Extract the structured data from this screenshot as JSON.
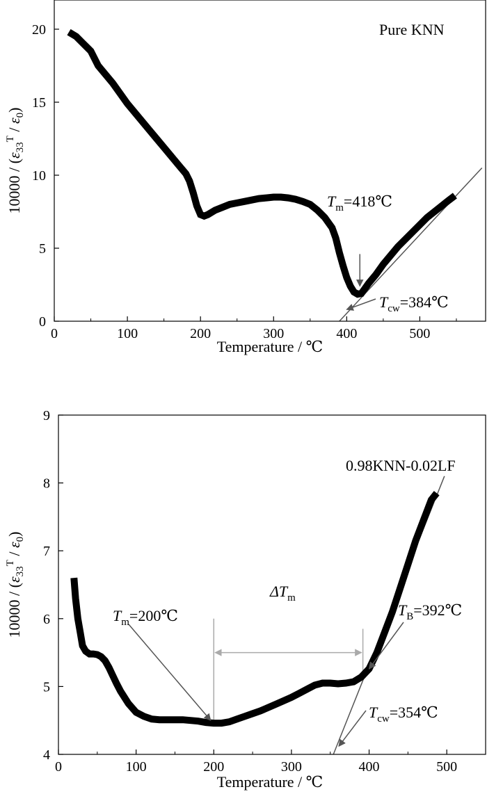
{
  "chart_data": [
    {
      "type": "line",
      "title": "Pure KNN",
      "xlabel": "Temperature / ℃",
      "ylabel_parts": [
        "10000 / (",
        "ε",
        "33",
        "T",
        " / ",
        "ε",
        "0",
        ")"
      ],
      "xlim": [
        0,
        590
      ],
      "ylim": [
        0,
        22
      ],
      "xticks": [
        0,
        100,
        200,
        300,
        400,
        500
      ],
      "yticks": [
        0,
        5,
        10,
        15,
        20
      ],
      "grid": false,
      "series": [
        {
          "x": [
            20,
            30,
            40,
            50,
            60,
            70,
            80,
            90,
            100,
            110,
            120,
            130,
            140,
            150,
            160,
            170,
            180,
            185,
            190,
            195,
            200,
            205,
            210,
            220,
            230,
            240,
            250,
            260,
            270,
            280,
            290,
            300,
            310,
            320,
            330,
            340,
            350,
            360,
            370,
            380,
            385,
            390,
            395,
            400,
            405,
            410,
            415,
            420,
            430,
            440,
            450,
            460,
            470,
            480,
            490,
            500,
            510,
            520,
            530,
            540,
            548
          ],
          "y": [
            19.8,
            19.5,
            19.0,
            18.5,
            17.5,
            16.9,
            16.3,
            15.6,
            14.9,
            14.3,
            13.7,
            13.1,
            12.5,
            11.9,
            11.3,
            10.7,
            10.1,
            9.6,
            8.8,
            7.9,
            7.3,
            7.2,
            7.3,
            7.6,
            7.8,
            8.0,
            8.1,
            8.2,
            8.3,
            8.4,
            8.45,
            8.5,
            8.5,
            8.45,
            8.35,
            8.2,
            8.0,
            7.6,
            7.1,
            6.4,
            5.7,
            4.7,
            3.8,
            3.0,
            2.4,
            2.0,
            1.85,
            1.9,
            2.6,
            3.2,
            3.9,
            4.5,
            5.1,
            5.6,
            6.1,
            6.6,
            7.1,
            7.5,
            7.9,
            8.3,
            8.6
          ]
        }
      ],
      "fit_line": {
        "x": [
          390,
          585
        ],
        "y": [
          0,
          10.5
        ]
      },
      "annotations": {
        "tm": {
          "sym": "T",
          "sub": "m",
          "value": "=418℃"
        },
        "tcw": {
          "sym": "T",
          "sub": "cw",
          "value": "=384℃"
        }
      },
      "colors": {
        "curve": "#000000",
        "fit_line": "#555555",
        "arrow": "#555555"
      }
    },
    {
      "type": "line",
      "title": "0.98KNN-0.02LF",
      "xlabel": "Temperature / ℃",
      "ylabel_parts": [
        "10000 / (",
        "ε",
        "33",
        "T",
        " / ",
        "ε",
        "0",
        ")"
      ],
      "xlim": [
        0,
        550
      ],
      "ylim": [
        4,
        9
      ],
      "xticks": [
        0,
        100,
        200,
        300,
        400,
        500
      ],
      "yticks": [
        4,
        5,
        6,
        7,
        8,
        9
      ],
      "grid": false,
      "series": [
        {
          "x": [
            20,
            22,
            25,
            28,
            31,
            35,
            40,
            45,
            50,
            55,
            60,
            65,
            70,
            75,
            80,
            90,
            100,
            110,
            120,
            130,
            140,
            150,
            160,
            170,
            180,
            190,
            200,
            210,
            220,
            230,
            240,
            250,
            260,
            270,
            280,
            290,
            300,
            310,
            320,
            330,
            340,
            350,
            360,
            370,
            380,
            390,
            400,
            410,
            420,
            430,
            440,
            450,
            460,
            470,
            480,
            487
          ],
          "y": [
            6.6,
            6.3,
            6.0,
            5.8,
            5.6,
            5.52,
            5.48,
            5.48,
            5.47,
            5.44,
            5.38,
            5.28,
            5.16,
            5.04,
            4.93,
            4.75,
            4.62,
            4.56,
            4.52,
            4.51,
            4.51,
            4.51,
            4.51,
            4.5,
            4.49,
            4.47,
            4.46,
            4.46,
            4.48,
            4.52,
            4.56,
            4.6,
            4.64,
            4.69,
            4.74,
            4.79,
            4.84,
            4.9,
            4.96,
            5.02,
            5.05,
            5.05,
            5.04,
            5.05,
            5.07,
            5.14,
            5.26,
            5.5,
            5.8,
            6.1,
            6.45,
            6.8,
            7.15,
            7.45,
            7.75,
            7.85
          ]
        }
      ],
      "fit_line": {
        "x": [
          354,
          497
        ],
        "y": [
          4,
          8.1
        ]
      },
      "markers": {
        "tm_x": 200,
        "tb_x": 392
      },
      "annotations": {
        "dtm": {
          "sym": "ΔT",
          "sub": "m"
        },
        "tm": {
          "sym": "T",
          "sub": "m",
          "value": "=200℃"
        },
        "tb": {
          "sym": "T",
          "sub": "B",
          "value": "=392℃"
        },
        "tcw": {
          "sym": "T",
          "sub": "cw",
          "value": "=354℃"
        }
      },
      "colors": {
        "curve": "#000000",
        "fit_line": "#555555",
        "arrow": "#555555",
        "marker": "#aaaaaa"
      }
    }
  ]
}
